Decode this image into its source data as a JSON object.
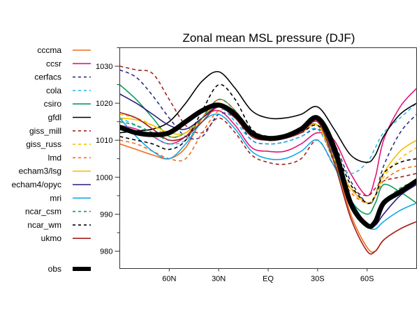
{
  "chart_data": {
    "type": "line",
    "title": "Zonal mean MSL pressure (DJF)",
    "xlabel": "",
    "ylabel": "",
    "xlim": [
      90,
      -90
    ],
    "ylim": [
      975.3,
      1035
    ],
    "x_ticks": [
      {
        "value": 60,
        "label": "60N"
      },
      {
        "value": 30,
        "label": "30N"
      },
      {
        "value": 0,
        "label": "EQ"
      },
      {
        "value": -30,
        "label": "30S"
      },
      {
        "value": -60,
        "label": "60S"
      }
    ],
    "y_ticks": [
      980,
      990,
      1000,
      1010,
      1020,
      1030
    ],
    "y_minor_ticks": [
      985,
      995,
      1005,
      1015,
      1025,
      1035
    ],
    "grid": false,
    "legend_position": "left",
    "x": [
      90,
      80,
      70,
      60,
      50,
      40,
      30,
      20,
      10,
      0,
      -10,
      -20,
      -30,
      -40,
      -50,
      -60,
      -65,
      -70,
      -80,
      -90
    ],
    "series": [
      {
        "name": "cccma",
        "color": "#f26c1a",
        "dash": "solid",
        "values": [
          1009,
          1007.5,
          1006,
          1005,
          1008,
          1016,
          1021,
          1018,
          1012,
          1011,
          1011.5,
          1013,
          1014,
          1005,
          990,
          981,
          980,
          983,
          986,
          988
        ]
      },
      {
        "name": "ccsr",
        "color": "#e0157a",
        "dash": "solid",
        "values": [
          1014,
          1013,
          1011,
          1009,
          1011,
          1016,
          1018,
          1014,
          1008,
          1007,
          1007,
          1009,
          1012,
          1010,
          1001,
          995,
          1000,
          1010,
          1019,
          1024
        ]
      },
      {
        "name": "cerfacs",
        "color": "#2b2e8c",
        "dash": "dash",
        "values": [
          1029,
          1027,
          1022,
          1016,
          1011,
          1011,
          1017,
          1016,
          1010,
          1009,
          1009.5,
          1011,
          1013,
          1009,
          999,
          993,
          995,
          1003,
          1012,
          1017
        ]
      },
      {
        "name": "cola",
        "color": "#2ebaec",
        "dash": "dash",
        "values": [
          1016,
          1014,
          1011,
          1009,
          1010,
          1015,
          1019,
          1015,
          1010,
          1009,
          1009.5,
          1011,
          1013,
          1005,
          1001,
          1004,
          1008,
          1012,
          1016,
          1020
        ]
      },
      {
        "name": "csiro",
        "color": "#0c9b5a",
        "dash": "solid",
        "values": [
          1025,
          1021,
          1016,
          1011,
          1012,
          1016,
          1019,
          1016,
          1012,
          1011,
          1011.5,
          1013,
          1016,
          1006,
          994,
          990,
          993,
          998,
          996,
          993
        ]
      },
      {
        "name": "gfdl",
        "color": "#000000",
        "dash": "solid",
        "values": [
          1012,
          1012.5,
          1013,
          1015,
          1020,
          1026,
          1028.5,
          1024,
          1018,
          1016,
          1016,
          1017,
          1019,
          1013,
          1006,
          1004,
          1006,
          1011,
          1017,
          1020
        ]
      },
      {
        "name": "giss_mill",
        "color": "#a3201d",
        "dash": "dash",
        "values": [
          1030,
          1029,
          1028,
          1021,
          1014,
          1012,
          1016,
          1012,
          1006,
          1004,
          1003.5,
          1005,
          1010,
          1003,
          997,
          995,
          997,
          999,
          1000,
          1001
        ]
      },
      {
        "name": "giss_russ",
        "color": "#f5c000",
        "dash": "dash",
        "values": [
          1017,
          1016,
          1014,
          1011,
          1012,
          1016,
          1020,
          1017,
          1012,
          1010,
          1010.5,
          1012,
          1014,
          1006,
          997,
          993,
          995,
          1000,
          1005,
          1008
        ]
      },
      {
        "name": "lmd",
        "color": "#f26c1a",
        "dash": "dash",
        "values": [
          1010,
          1009,
          1007,
          1005,
          1005,
          1012,
          1018,
          1017,
          1012,
          1010,
          1010.5,
          1012,
          1014,
          1004,
          996,
          993,
          995,
          999,
          1002,
          1003
        ]
      },
      {
        "name": "echam3/lsg",
        "color": "#f5c000",
        "dash": "solid",
        "values": [
          1016,
          1015.5,
          1014,
          1012,
          1012,
          1016,
          1020,
          1017,
          1012,
          1010,
          1010.5,
          1012,
          1014,
          1005,
          997,
          993,
          995,
          1001,
          1007,
          1010
        ]
      },
      {
        "name": "echam4/opyc",
        "color": "#2b1a7a",
        "dash": "solid",
        "values": [
          1022.5,
          1020,
          1017,
          1014,
          1013,
          1016,
          1019,
          1016,
          1011,
          1010,
          1010.5,
          1012,
          1015,
          1006,
          994,
          987,
          987,
          990,
          995,
          998
        ]
      },
      {
        "name": "mri",
        "color": "#16a7e6",
        "dash": "solid",
        "values": [
          1016,
          1011,
          1007,
          1005,
          1009,
          1015,
          1017,
          1013,
          1007,
          1005,
          1005,
          1007,
          1010,
          1003,
          994,
          987,
          986,
          988,
          991,
          993
        ]
      },
      {
        "name": "ncar_csm",
        "color": "#0c9b5a",
        "dash": "dash",
        "values": [
          1015,
          1014,
          1012,
          1010,
          1011,
          1016,
          1021,
          1018,
          1012,
          1011,
          1011.5,
          1013,
          1015,
          1005,
          992,
          987,
          988,
          993,
          997,
          999
        ]
      },
      {
        "name": "ncar_wm",
        "color": "#000000",
        "dash": "dash",
        "values": [
          1011,
          1010,
          1009,
          1007.5,
          1010,
          1018,
          1025,
          1021,
          1013,
          1011,
          1011,
          1012,
          1014,
          1008,
          998,
          993,
          995,
          1001,
          1004,
          1005
        ]
      },
      {
        "name": "ukmo",
        "color": "#a3201d",
        "dash": "solid",
        "values": [
          1017.5,
          1016,
          1013,
          1010,
          1011,
          1015,
          1019,
          1016,
          1011,
          1010,
          1010.5,
          1012,
          1015,
          1004,
          989,
          980,
          980,
          983,
          986,
          988
        ]
      },
      {
        "name": "obs",
        "color": "#000000",
        "dash": "thick",
        "values": [
          1013.5,
          1012,
          1011.5,
          1012,
          1015,
          1018,
          1019.5,
          1017,
          1012,
          1010.5,
          1011,
          1013,
          1016,
          1008,
          993,
          987,
          988,
          993,
          996,
          999
        ]
      }
    ]
  }
}
